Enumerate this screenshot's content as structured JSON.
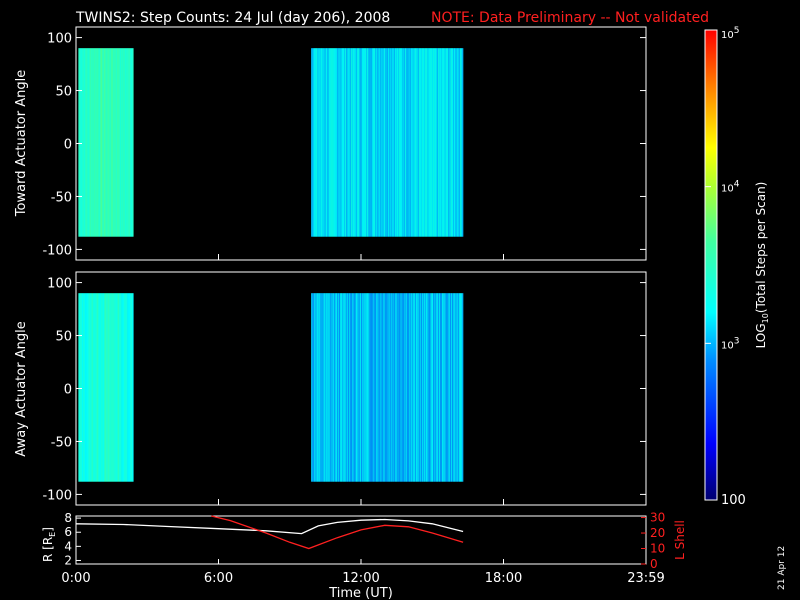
{
  "header": {
    "title": "TWINS2: Step Counts: 24 Jul (day 206), 2008",
    "note": "NOTE: Data Preliminary -- Not validated"
  },
  "side_date": "21 Apr 12",
  "colors": {
    "background": "#000000",
    "note": "#ff2020",
    "frame": "#ffffff",
    "r_curve": "#ffffff",
    "lshell_curve": "#ff2020"
  },
  "chart_data": [
    {
      "type": "heatmap",
      "ylabel": "Toward Actuator Angle",
      "ylim": [
        -110,
        110
      ],
      "yticks": [
        "100",
        "50",
        "0",
        "-50",
        "-100"
      ],
      "ytick_values": [
        100,
        50,
        0,
        -50,
        -100
      ],
      "xlim": [
        0,
        24
      ],
      "angle_range": [
        -88,
        90
      ],
      "data_blocks": [
        {
          "start": 0.1,
          "end": 2.4,
          "level": 3.45
        },
        {
          "start": 9.9,
          "end": 16.3,
          "level": 3.15
        }
      ]
    },
    {
      "type": "heatmap",
      "ylabel": "Away Actuator Angle",
      "ylim": [
        -110,
        110
      ],
      "yticks": [
        "100",
        "50",
        "0",
        "-50",
        "-100"
      ],
      "ytick_values": [
        100,
        50,
        0,
        -50,
        -100
      ],
      "xlim": [
        0,
        24
      ],
      "angle_range": [
        -88,
        90
      ],
      "data_blocks": [
        {
          "start": 0.1,
          "end": 2.4,
          "level": 3.3
        },
        {
          "start": 9.9,
          "end": 16.3,
          "level": 3.05
        }
      ]
    },
    {
      "type": "line",
      "ylabel": "R [R",
      "ylabel_sub": "E",
      "ylabel_end": "]",
      "ylim": [
        1.5,
        8.3
      ],
      "yticks": [
        "8",
        "6",
        "4",
        "2"
      ],
      "ytick_values": [
        8,
        6,
        4,
        2
      ],
      "ylabel_right": "L Shell",
      "ylim_right": [
        0,
        31
      ],
      "yticks_right": [
        "30",
        "20",
        "10",
        "0"
      ],
      "ytick_values_right": [
        30,
        20,
        10,
        0
      ],
      "xlim": [
        0,
        24
      ],
      "xlabel": "Time (UT)",
      "xticks": [
        "0:00",
        "6:00",
        "12:00",
        "18:00",
        "23:59"
      ],
      "xtick_values": [
        0,
        6,
        12,
        18,
        24
      ],
      "series": [
        {
          "name": "R",
          "axis": "left",
          "x": [
            0,
            2,
            4,
            6,
            8,
            9.5,
            10.2,
            11,
            12,
            13,
            14,
            15,
            16.3
          ],
          "y": [
            7.2,
            7.1,
            6.8,
            6.5,
            6.2,
            5.8,
            6.9,
            7.4,
            7.7,
            7.8,
            7.6,
            7.2,
            6.1
          ]
        },
        {
          "name": "L Shell",
          "axis": "right",
          "x": [
            5.7,
            6.5,
            8,
            9.0,
            9.8,
            11,
            12,
            13,
            14,
            15,
            16.3
          ],
          "y": [
            31,
            28,
            20,
            14,
            10,
            17,
            22,
            25,
            24,
            20,
            14
          ]
        }
      ]
    }
  ],
  "colorbar": {
    "label_main": "LOG",
    "label_sub": "10",
    "label_rest": "(Total Steps per Scan)",
    "range_log": [
      2,
      5
    ],
    "ticks": [
      {
        "base": "10",
        "exp": "5",
        "value": 5
      },
      {
        "base": "10",
        "exp": "4",
        "value": 4
      },
      {
        "base": "10",
        "exp": "3",
        "value": 3
      },
      {
        "base": "100",
        "exp": "",
        "value": 2
      }
    ]
  }
}
